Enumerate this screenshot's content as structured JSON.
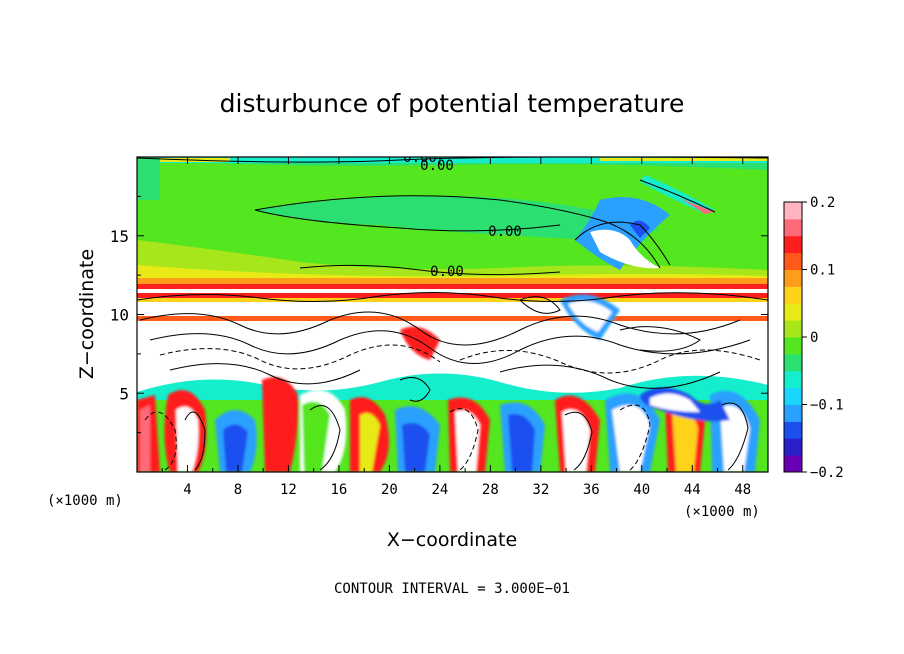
{
  "chart_data": {
    "type": "heatmap",
    "title": "disturbunce of potential temperature",
    "xlabel": "X−coordinate",
    "ylabel": "Z−coordinate",
    "x_unit": "(×1000 m)",
    "z_unit": "(×1000 m)",
    "xlim": [
      0,
      50
    ],
    "zlim": [
      0,
      20
    ],
    "x_ticks": [
      "4",
      "8",
      "12",
      "16",
      "20",
      "24",
      "28",
      "32",
      "36",
      "40",
      "44",
      "48"
    ],
    "x_tick_values": [
      4,
      8,
      12,
      16,
      20,
      24,
      28,
      32,
      36,
      40,
      44,
      48
    ],
    "z_ticks": [
      "5",
      "10",
      "15"
    ],
    "z_tick_values": [
      5,
      10,
      15
    ],
    "contour_labels": [
      "0.00",
      "0.00",
      "0.00",
      "0.00"
    ],
    "contour_label_positions": [
      [
        21.5,
        19.7
      ],
      [
        24,
        19.4
      ],
      [
        28,
        15.4
      ],
      [
        24.5,
        12.7
      ]
    ],
    "colorbar": {
      "range": [
        -0.2,
        0.2
      ],
      "ticks": [
        "0.2",
        "0.1",
        "0",
        "−0.1",
        "−0.2"
      ],
      "tick_values": [
        0.2,
        0.1,
        0,
        -0.1,
        -0.2
      ],
      "colors": [
        "#6a00b4",
        "#2a1fc8",
        "#1b4ff0",
        "#2aa0ff",
        "#1ad6ff",
        "#14eecc",
        "#2be070",
        "#54e61f",
        "#a8e61c",
        "#e8ea18",
        "#ffd21a",
        "#ff9d1a",
        "#ff5a1a",
        "#ff1e1e",
        "#ff6a7a",
        "#ffb4c0"
      ],
      "color_note": "16 bands from -0.2 (purple) to 0.2 (pink)"
    },
    "contour_interval_text": "CONTOUR INTERVAL = 3.000E−01",
    "regions": [
      {
        "feature": "upper layer green field",
        "zrange": [
          12,
          20
        ],
        "value": 0.0
      },
      {
        "feature": "warm/cold bands at tropopause",
        "z": [
          12.2,
          11.5
        ],
        "value_range": [
          0.15,
          0.2
        ]
      },
      {
        "feature": "cold anomaly",
        "x": [
          37,
          41
        ],
        "z": [
          14,
          16
        ],
        "value": -0.15
      },
      {
        "feature": "dense contour turbulence",
        "zrange": [
          5,
          12
        ]
      },
      {
        "feature": "lower convective eddies",
        "zrange": [
          0,
          8
        ]
      }
    ]
  }
}
